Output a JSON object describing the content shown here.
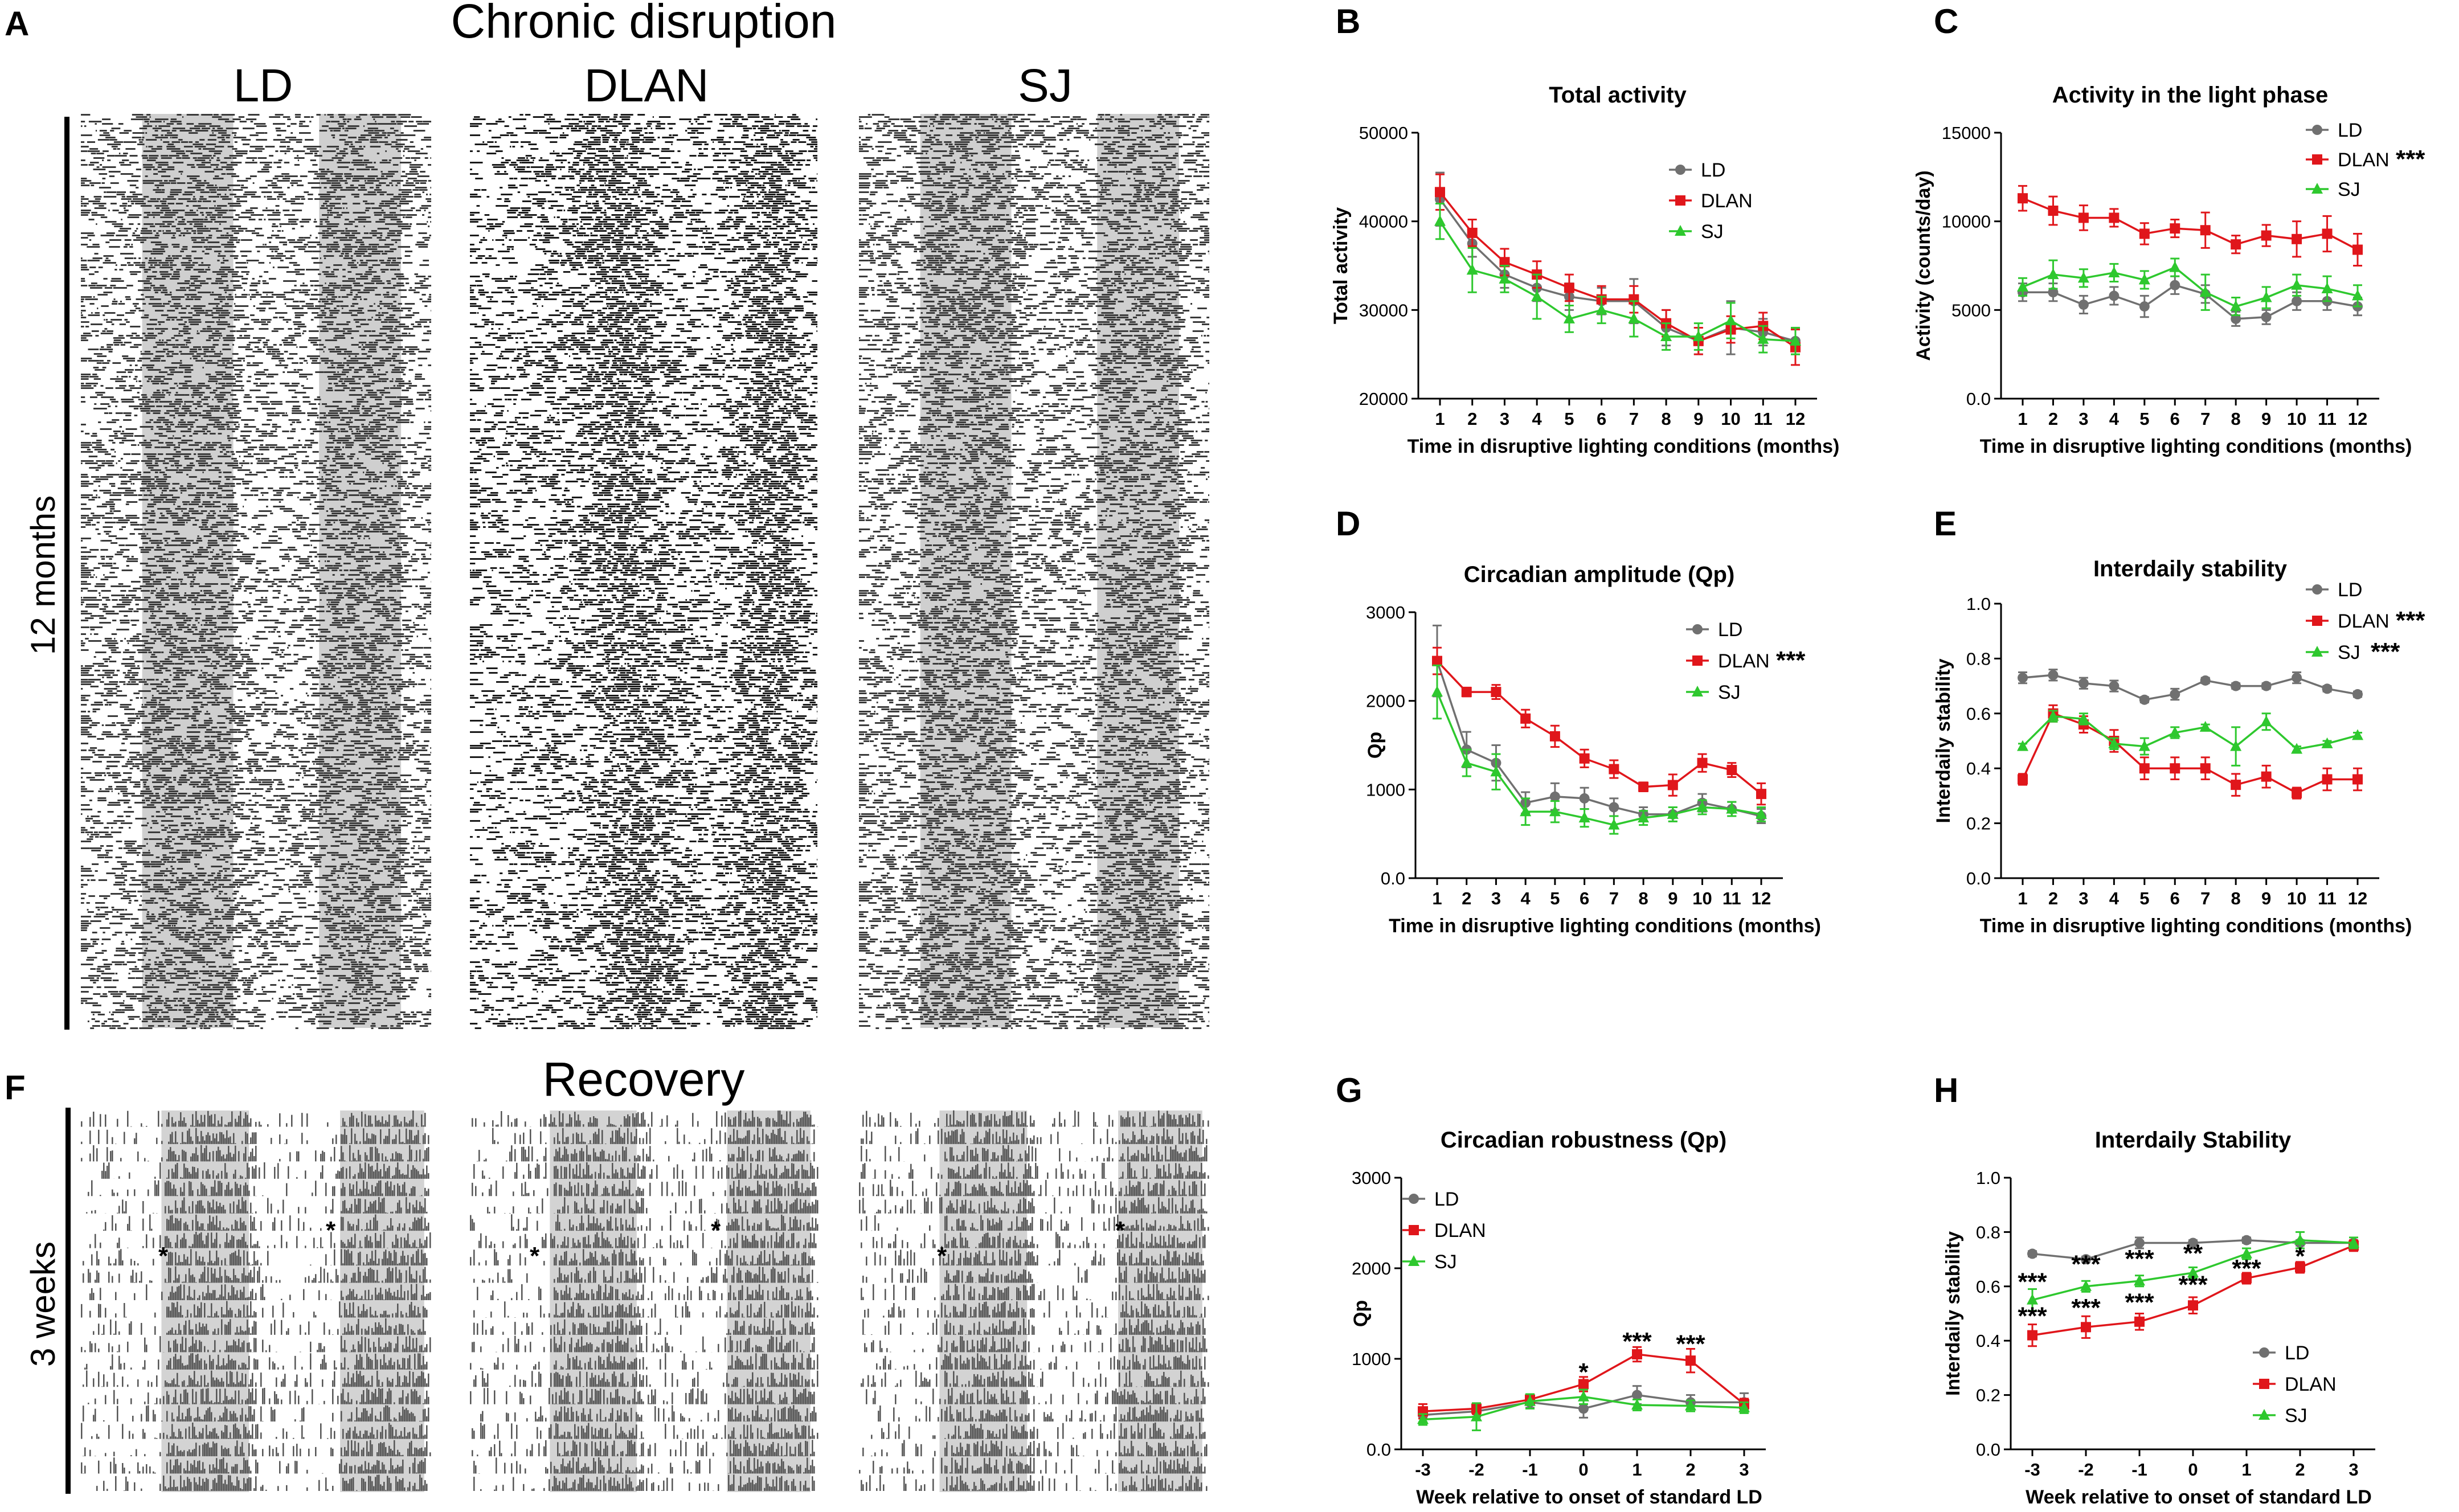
{
  "panel_a": {
    "letter": "A",
    "title": "Chronic disruption",
    "columns": [
      "LD",
      "DLAN",
      "SJ"
    ],
    "side_label": "12 months"
  },
  "panel_f": {
    "letter": "F",
    "title": "Recovery",
    "side_label": "3 weeks",
    "onset_marker": "*"
  },
  "colors": {
    "LD": "#707070",
    "DLAN": "#e0161b",
    "SJ": "#2ec82e"
  },
  "chart_data": [
    {
      "id": "B",
      "letter": "B",
      "type": "line",
      "title": "Total activity",
      "xlabel": "Time in disruptive lighting conditions (months)",
      "ylabel": "Total activity",
      "x": [
        1,
        2,
        3,
        4,
        5,
        6,
        7,
        8,
        9,
        10,
        11,
        12
      ],
      "ylim": [
        20000,
        50000
      ],
      "yticks": [
        20000,
        30000,
        40000,
        50000
      ],
      "legend": {
        "position": "top-right"
      },
      "series": [
        {
          "name": "LD",
          "stars": "",
          "values": [
            42500,
            37500,
            34000,
            32500,
            31500,
            31000,
            31000,
            28000,
            26500,
            28000,
            27500,
            26500
          ],
          "err": [
            3000,
            1500,
            1500,
            1500,
            1500,
            1500,
            2500,
            2000,
            1500,
            3000,
            1500,
            1500
          ]
        },
        {
          "name": "DLAN",
          "stars": "",
          "values": [
            43300,
            38700,
            35400,
            34000,
            32500,
            31200,
            31200,
            28500,
            26500,
            27800,
            28200,
            25800
          ],
          "err": [
            2000,
            1500,
            1500,
            1500,
            1500,
            1500,
            1500,
            1500,
            1500,
            1500,
            1500,
            2000
          ]
        },
        {
          "name": "SJ",
          "stars": "",
          "values": [
            40000,
            34500,
            33500,
            31500,
            29000,
            30000,
            29000,
            27000,
            27000,
            28800,
            26700,
            26500
          ],
          "err": [
            2000,
            2500,
            1500,
            2500,
            1500,
            1500,
            2000,
            1500,
            1500,
            2000,
            1500,
            1500
          ]
        }
      ]
    },
    {
      "id": "C",
      "letter": "C",
      "type": "line",
      "title": "Activity in the light phase",
      "xlabel": "Time in disruptive lighting conditions (months)",
      "ylabel": "Activity (counts/day)",
      "x": [
        1,
        2,
        3,
        4,
        5,
        6,
        7,
        8,
        9,
        10,
        11,
        12
      ],
      "ylim": [
        0,
        15000
      ],
      "yticks": [
        0,
        5000,
        10000,
        15000
      ],
      "legend": {
        "position": "top-right"
      },
      "series": [
        {
          "name": "LD",
          "stars": "",
          "values": [
            6000,
            6000,
            5300,
            5800,
            5200,
            6400,
            5900,
            4500,
            4600,
            5500,
            5500,
            5200
          ],
          "err": [
            500,
            500,
            500,
            500,
            600,
            500,
            500,
            400,
            400,
            500,
            500,
            500
          ]
        },
        {
          "name": "DLAN",
          "stars": "***",
          "values": [
            11300,
            10600,
            10200,
            10200,
            9300,
            9600,
            9500,
            8700,
            9200,
            9000,
            9300,
            8400
          ],
          "err": [
            700,
            800,
            700,
            500,
            600,
            500,
            1000,
            500,
            600,
            1000,
            1000,
            900
          ]
        },
        {
          "name": "SJ",
          "stars": "",
          "values": [
            6300,
            7000,
            6800,
            7100,
            6700,
            7400,
            6000,
            5200,
            5700,
            6400,
            6200,
            5800
          ],
          "err": [
            500,
            800,
            500,
            500,
            500,
            500,
            1000,
            500,
            600,
            600,
            700,
            600
          ]
        }
      ]
    },
    {
      "id": "D",
      "letter": "D",
      "type": "line",
      "title": "Circadian amplitude (Qp)",
      "xlabel": "Time in disruptive lighting conditions (months)",
      "ylabel": "Qp",
      "x": [
        1,
        2,
        3,
        4,
        5,
        6,
        7,
        8,
        9,
        10,
        11,
        12
      ],
      "ylim": [
        0,
        3000
      ],
      "yticks": [
        0,
        1000,
        2000,
        3000
      ],
      "legend": {
        "position": "top-right"
      },
      "series": [
        {
          "name": "LD",
          "stars": "",
          "values": [
            2450,
            1450,
            1300,
            850,
            920,
            900,
            800,
            720,
            720,
            850,
            780,
            700
          ],
          "err": [
            400,
            200,
            200,
            120,
            150,
            120,
            100,
            80,
            80,
            100,
            80,
            80
          ]
        },
        {
          "name": "DLAN",
          "stars": "***",
          "values": [
            2450,
            2100,
            2100,
            1800,
            1600,
            1350,
            1230,
            1030,
            1050,
            1300,
            1220,
            950
          ],
          "err": [
            150,
            50,
            80,
            100,
            120,
            100,
            100,
            50,
            120,
            100,
            80,
            120
          ]
        },
        {
          "name": "SJ",
          "stars": "",
          "values": [
            2100,
            1300,
            1200,
            750,
            750,
            680,
            600,
            680,
            720,
            800,
            780,
            720
          ],
          "err": [
            300,
            150,
            200,
            150,
            120,
            100,
            100,
            80,
            80,
            80,
            80,
            80
          ]
        }
      ]
    },
    {
      "id": "E",
      "letter": "E",
      "type": "line",
      "title": "Interdaily stability",
      "xlabel": "Time in disruptive lighting conditions (months)",
      "ylabel": "Interdaily stability",
      "x": [
        1,
        2,
        3,
        4,
        5,
        6,
        7,
        8,
        9,
        10,
        11,
        12
      ],
      "ylim": [
        0,
        1.0
      ],
      "yticks": [
        0,
        0.2,
        0.4,
        0.6,
        0.8,
        1.0
      ],
      "legend": {
        "position": "top-right"
      },
      "series": [
        {
          "name": "LD",
          "stars": "",
          "values": [
            0.73,
            0.74,
            0.71,
            0.7,
            0.65,
            0.67,
            0.72,
            0.7,
            0.7,
            0.73,
            0.69,
            0.67
          ],
          "err": [
            0.02,
            0.02,
            0.02,
            0.02,
            0.01,
            0.02,
            0.01,
            0.01,
            0.01,
            0.02,
            0.01,
            0.01
          ]
        },
        {
          "name": "DLAN",
          "stars": "***",
          "values": [
            0.36,
            0.6,
            0.56,
            0.5,
            0.4,
            0.4,
            0.4,
            0.34,
            0.37,
            0.31,
            0.36,
            0.36
          ],
          "err": [
            0.02,
            0.03,
            0.03,
            0.04,
            0.04,
            0.04,
            0.04,
            0.04,
            0.04,
            0.02,
            0.04,
            0.04
          ]
        },
        {
          "name": "SJ",
          "stars": "***",
          "values": [
            0.48,
            0.59,
            0.58,
            0.49,
            0.48,
            0.53,
            0.55,
            0.48,
            0.57,
            0.47,
            0.49,
            0.52
          ],
          "err": [
            0.01,
            0.02,
            0.02,
            0.02,
            0.03,
            0.02,
            0.01,
            0.07,
            0.03,
            0.01,
            0.01,
            0.01
          ]
        }
      ]
    },
    {
      "id": "G",
      "letter": "G",
      "type": "line",
      "title": "Circadian robustness (Qp)",
      "xlabel": "Week relative to onset of standard LD",
      "ylabel": "Qp",
      "x": [
        -3,
        -2,
        -1,
        0,
        1,
        2,
        3
      ],
      "ylim": [
        0,
        3000
      ],
      "yticks": [
        0,
        1000,
        2000,
        3000
      ],
      "legend": {
        "position": "top-left"
      },
      "series": [
        {
          "name": "LD",
          "stars": "",
          "values": [
            380,
            420,
            520,
            450,
            600,
            520,
            520
          ],
          "err": [
            80,
            60,
            60,
            100,
            100,
            80,
            100
          ]
        },
        {
          "name": "DLAN",
          "stars": "",
          "values": [
            420,
            450,
            550,
            720,
            1050,
            980,
            500
          ],
          "err": [
            80,
            60,
            60,
            80,
            80,
            130,
            60
          ]
        },
        {
          "name": "SJ",
          "stars": "",
          "values": [
            330,
            360,
            530,
            580,
            490,
            480,
            460
          ],
          "err": [
            60,
            150,
            80,
            80,
            60,
            60,
            60
          ]
        }
      ],
      "annotations": [
        {
          "x": 0,
          "value": 850,
          "text": "*"
        },
        {
          "x": 1,
          "value": 1190,
          "text": "***"
        },
        {
          "x": 2,
          "value": 1160,
          "text": "***"
        }
      ]
    },
    {
      "id": "H",
      "letter": "H",
      "type": "line",
      "title": "Interdaily Stability",
      "xlabel": "Week relative to onset of standard LD",
      "ylabel": "Interdaily stability",
      "x": [
        -3,
        -2,
        -1,
        0,
        1,
        2,
        3
      ],
      "ylim": [
        0,
        1.0
      ],
      "yticks": [
        0,
        0.2,
        0.4,
        0.6,
        0.8,
        1.0
      ],
      "legend": {
        "position": "bottom-right"
      },
      "series": [
        {
          "name": "LD",
          "stars": "",
          "values": [
            0.72,
            0.7,
            0.76,
            0.76,
            0.77,
            0.76,
            0.76
          ],
          "err": [
            0.01,
            0.01,
            0.02,
            0.01,
            0.01,
            0.01,
            0.01
          ]
        },
        {
          "name": "DLAN",
          "stars": "",
          "values": [
            0.42,
            0.45,
            0.47,
            0.53,
            0.63,
            0.67,
            0.75
          ],
          "err": [
            0.04,
            0.04,
            0.03,
            0.03,
            0.02,
            0.02,
            0.02
          ]
        },
        {
          "name": "SJ",
          "stars": "",
          "values": [
            0.55,
            0.6,
            0.62,
            0.65,
            0.72,
            0.77,
            0.76
          ],
          "err": [
            0.04,
            0.02,
            0.02,
            0.02,
            0.02,
            0.03,
            0.02
          ]
        }
      ],
      "annotations": [
        {
          "x": -3,
          "value": 0.615,
          "text": "***"
        },
        {
          "x": -2,
          "value": 0.68,
          "text": "***"
        },
        {
          "x": -1,
          "value": 0.7,
          "text": "***"
        },
        {
          "x": 0,
          "value": 0.72,
          "text": "**"
        },
        {
          "x": -3,
          "value": 0.49,
          "text": "***"
        },
        {
          "x": -2,
          "value": 0.52,
          "text": "***"
        },
        {
          "x": -1,
          "value": 0.54,
          "text": "***"
        },
        {
          "x": 0,
          "value": 0.605,
          "text": "***"
        },
        {
          "x": 1,
          "value": 0.665,
          "text": "***"
        },
        {
          "x": 2,
          "value": 0.71,
          "text": "*"
        }
      ]
    }
  ]
}
